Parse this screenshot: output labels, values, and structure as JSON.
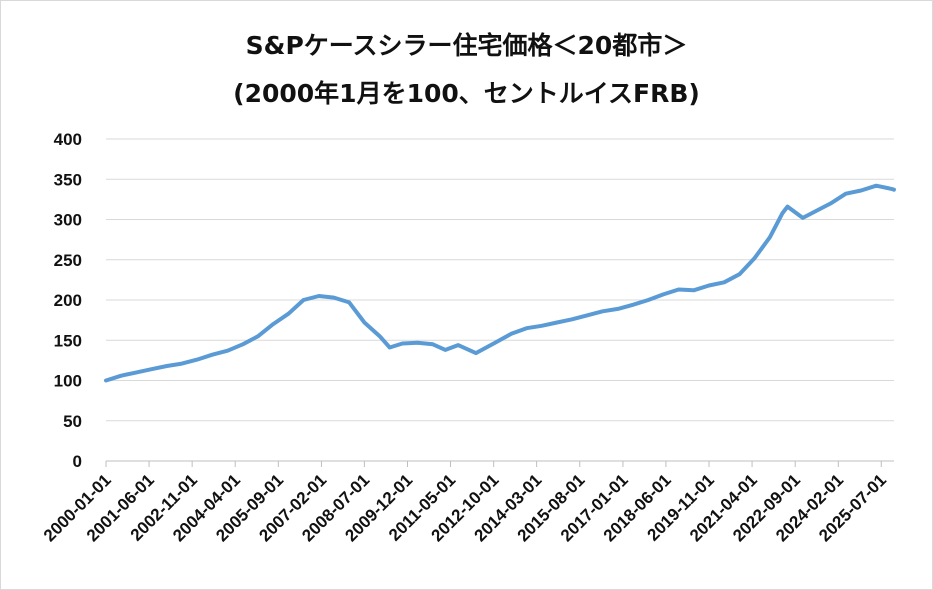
{
  "chart_data": {
    "type": "line",
    "title": [
      "S&Pケースシラー住宅価格＜20都市＞",
      "(2000年1月を100、セントルイスFRB)"
    ],
    "xlabel": "",
    "ylabel": "",
    "ylim": [
      0,
      400
    ],
    "yticks": [
      0,
      50,
      100,
      150,
      200,
      250,
      300,
      350,
      400
    ],
    "x_start": "2000-01-01",
    "x_end": "2025-12-01",
    "xticks": [
      "2000-01-01",
      "2001-06-01",
      "2002-11-01",
      "2004-04-01",
      "2005-09-01",
      "2007-02-01",
      "2008-07-01",
      "2009-12-01",
      "2011-05-01",
      "2012-10-01",
      "2014-03-01",
      "2015-08-01",
      "2017-01-01",
      "2018-06-01",
      "2019-11-01",
      "2021-04-01",
      "2022-09-01",
      "2024-02-01",
      "2025-07-01"
    ],
    "grid": "horizontal",
    "line_color": "#5b9bd5",
    "series": [
      {
        "points": [
          [
            "2000-01-01",
            100
          ],
          [
            "2000-07-01",
            106
          ],
          [
            "2001-01-01",
            110
          ],
          [
            "2001-07-01",
            114
          ],
          [
            "2002-01-01",
            118
          ],
          [
            "2002-07-01",
            121
          ],
          [
            "2003-01-01",
            126
          ],
          [
            "2003-07-01",
            132
          ],
          [
            "2004-01-01",
            137
          ],
          [
            "2004-07-01",
            145
          ],
          [
            "2005-01-01",
            155
          ],
          [
            "2005-07-01",
            170
          ],
          [
            "2006-01-01",
            183
          ],
          [
            "2006-07-01",
            200
          ],
          [
            "2007-01-01",
            205
          ],
          [
            "2007-07-01",
            203
          ],
          [
            "2008-01-01",
            197
          ],
          [
            "2008-07-01",
            172
          ],
          [
            "2009-01-01",
            155
          ],
          [
            "2009-05-01",
            141
          ],
          [
            "2009-10-01",
            146
          ],
          [
            "2010-04-01",
            147
          ],
          [
            "2010-10-01",
            145
          ],
          [
            "2011-03-01",
            138
          ],
          [
            "2011-08-01",
            144
          ],
          [
            "2012-03-01",
            134
          ],
          [
            "2012-10-01",
            146
          ],
          [
            "2013-05-01",
            158
          ],
          [
            "2013-11-01",
            165
          ],
          [
            "2014-05-01",
            168
          ],
          [
            "2014-11-01",
            172
          ],
          [
            "2015-05-01",
            176
          ],
          [
            "2015-11-01",
            181
          ],
          [
            "2016-05-01",
            186
          ],
          [
            "2016-11-01",
            189
          ],
          [
            "2017-05-01",
            194
          ],
          [
            "2017-11-01",
            200
          ],
          [
            "2018-05-01",
            207
          ],
          [
            "2018-11-01",
            213
          ],
          [
            "2019-05-01",
            212
          ],
          [
            "2019-11-01",
            218
          ],
          [
            "2020-05-01",
            222
          ],
          [
            "2020-11-01",
            232
          ],
          [
            "2021-05-01",
            252
          ],
          [
            "2021-11-01",
            278
          ],
          [
            "2022-04-01",
            308
          ],
          [
            "2022-06-01",
            316
          ],
          [
            "2022-12-01",
            302
          ],
          [
            "2023-05-01",
            310
          ],
          [
            "2023-11-01",
            320
          ],
          [
            "2024-05-01",
            332
          ],
          [
            "2024-11-01",
            336
          ],
          [
            "2025-05-01",
            342
          ],
          [
            "2025-11-01",
            338
          ],
          [
            "2025-12-01",
            337
          ]
        ]
      }
    ]
  }
}
